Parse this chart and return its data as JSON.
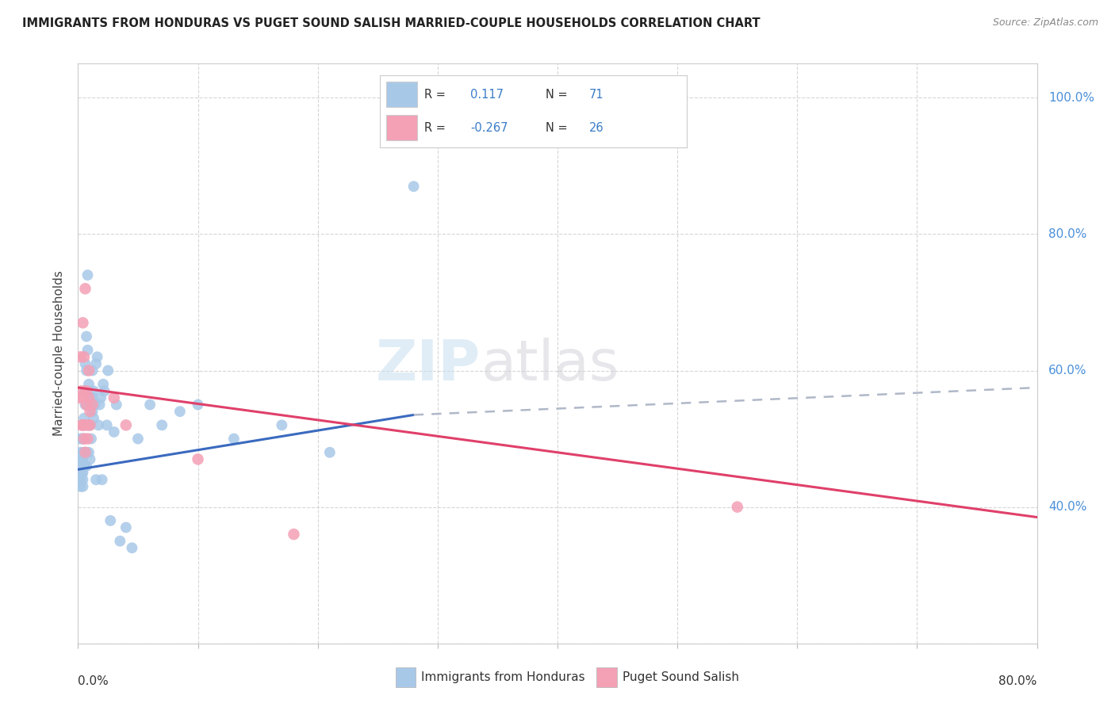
{
  "title": "IMMIGRANTS FROM HONDURAS VS PUGET SOUND SALISH MARRIED-COUPLE HOUSEHOLDS CORRELATION CHART",
  "source": "Source: ZipAtlas.com",
  "xmin": 0.0,
  "xmax": 0.8,
  "ymin": 0.2,
  "ymax": 1.05,
  "yticks": [
    0.2,
    0.4,
    0.6,
    0.8,
    1.0
  ],
  "ytick_labels_right": [
    "",
    "40.0%",
    "60.0%",
    "80.0%",
    "100.0%"
  ],
  "r_blue": 0.117,
  "n_blue": 71,
  "r_pink": -0.267,
  "n_pink": 26,
  "legend_label_blue": "Immigrants from Honduras",
  "legend_label_pink": "Puget Sound Salish",
  "color_blue": "#a8c8e8",
  "color_pink": "#f4a0b5",
  "line_blue": "#3a6abf",
  "line_pink": "#e0406a",
  "line_dash_color": "#b0b8c8",
  "blue_scatter_x": [
    0.001,
    0.001,
    0.002,
    0.002,
    0.002,
    0.003,
    0.003,
    0.003,
    0.003,
    0.004,
    0.004,
    0.004,
    0.004,
    0.004,
    0.004,
    0.005,
    0.005,
    0.005,
    0.005,
    0.006,
    0.006,
    0.006,
    0.006,
    0.007,
    0.007,
    0.007,
    0.007,
    0.007,
    0.008,
    0.008,
    0.008,
    0.009,
    0.009,
    0.009,
    0.01,
    0.01,
    0.01,
    0.011,
    0.011,
    0.012,
    0.012,
    0.012,
    0.013,
    0.013,
    0.014,
    0.015,
    0.015,
    0.016,
    0.017,
    0.018,
    0.019,
    0.02,
    0.021,
    0.022,
    0.024,
    0.025,
    0.027,
    0.03,
    0.032,
    0.035,
    0.04,
    0.045,
    0.05,
    0.06,
    0.07,
    0.085,
    0.1,
    0.13,
    0.17,
    0.21,
    0.28
  ],
  "blue_scatter_y": [
    0.46,
    0.5,
    0.44,
    0.48,
    0.43,
    0.47,
    0.45,
    0.52,
    0.5,
    0.44,
    0.47,
    0.5,
    0.43,
    0.45,
    0.48,
    0.5,
    0.46,
    0.53,
    0.48,
    0.57,
    0.55,
    0.61,
    0.52,
    0.65,
    0.6,
    0.48,
    0.52,
    0.46,
    0.63,
    0.74,
    0.55,
    0.52,
    0.58,
    0.48,
    0.55,
    0.52,
    0.47,
    0.5,
    0.56,
    0.56,
    0.54,
    0.6,
    0.53,
    0.57,
    0.55,
    0.61,
    0.44,
    0.62,
    0.52,
    0.55,
    0.56,
    0.44,
    0.58,
    0.57,
    0.52,
    0.6,
    0.38,
    0.51,
    0.55,
    0.35,
    0.37,
    0.34,
    0.5,
    0.55,
    0.52,
    0.54,
    0.55,
    0.5,
    0.52,
    0.48,
    0.87
  ],
  "pink_scatter_x": [
    0.001,
    0.002,
    0.003,
    0.003,
    0.004,
    0.004,
    0.004,
    0.005,
    0.005,
    0.005,
    0.006,
    0.006,
    0.007,
    0.007,
    0.008,
    0.008,
    0.009,
    0.009,
    0.01,
    0.01,
    0.012,
    0.03,
    0.04,
    0.1,
    0.18,
    0.55
  ],
  "pink_scatter_y": [
    0.56,
    0.62,
    0.52,
    0.57,
    0.56,
    0.52,
    0.67,
    0.5,
    0.62,
    0.52,
    0.72,
    0.48,
    0.55,
    0.57,
    0.52,
    0.5,
    0.56,
    0.6,
    0.54,
    0.52,
    0.55,
    0.56,
    0.52,
    0.47,
    0.36,
    0.4
  ],
  "blue_line_x_start": 0.0,
  "blue_line_x_solid_end": 0.28,
  "blue_line_x_dash_end": 0.8,
  "blue_line_y_start": 0.455,
  "blue_line_y_solid_end": 0.535,
  "blue_line_y_dash_end": 0.575,
  "pink_line_x_start": 0.0,
  "pink_line_x_end": 0.8,
  "pink_line_y_start": 0.575,
  "pink_line_y_end": 0.385
}
